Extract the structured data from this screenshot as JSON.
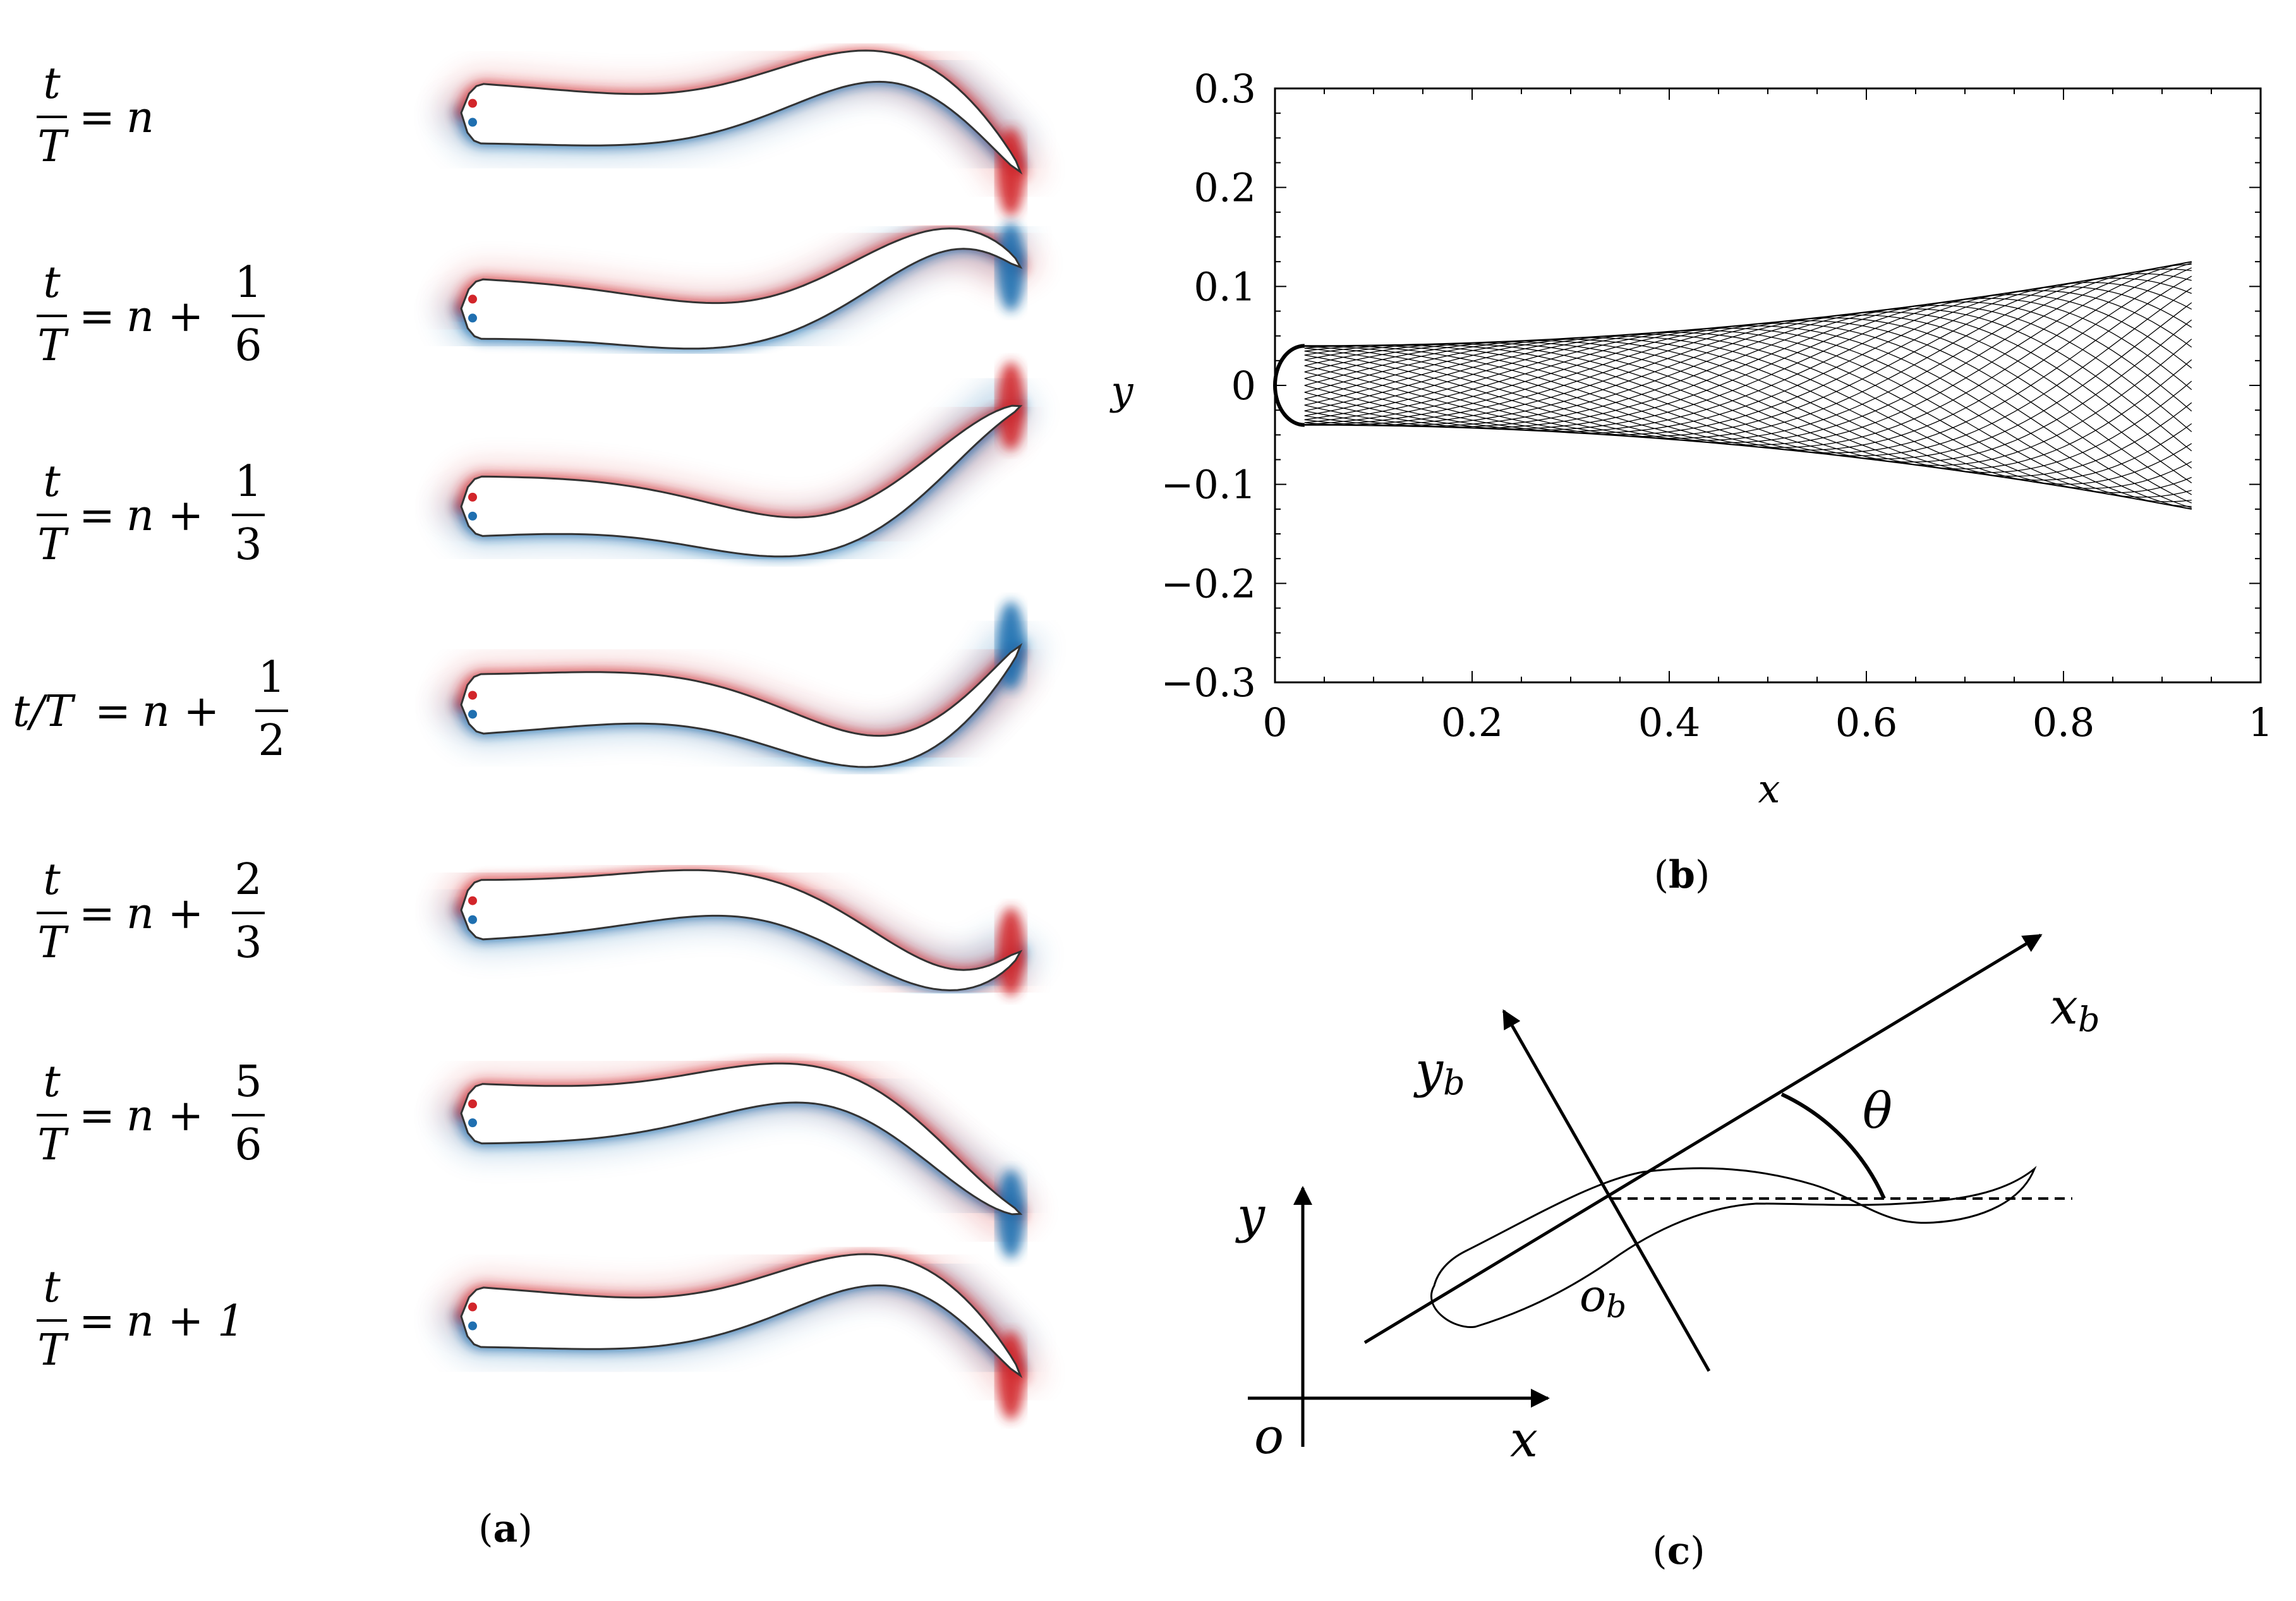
{
  "panel_a": {
    "caption_open": "(",
    "caption_letter": "a",
    "caption_close": ")",
    "snapshots": [
      {
        "lhs_num": "t",
        "lhs_den": "T",
        "eq": "=",
        "rhs": "n",
        "frac_num": "",
        "frac_den": ""
      },
      {
        "lhs_num": "t",
        "lhs_den": "T",
        "eq": "=",
        "rhs": "n +",
        "frac_num": "1",
        "frac_den": "6"
      },
      {
        "lhs_num": "t",
        "lhs_den": "T",
        "eq": "=",
        "rhs": "n +",
        "frac_num": "1",
        "frac_den": "3"
      },
      {
        "lhs_inline": "t/T",
        "eq": "=",
        "rhs": "n +",
        "frac_num": "1",
        "frac_den": "2"
      },
      {
        "lhs_num": "t",
        "lhs_den": "T",
        "eq": "=",
        "rhs": "n +",
        "frac_num": "2",
        "frac_den": "3"
      },
      {
        "lhs_num": "t",
        "lhs_den": "T",
        "eq": "=",
        "rhs": "n +",
        "frac_num": "5",
        "frac_den": "6"
      },
      {
        "lhs_num": "t",
        "lhs_den": "T",
        "eq": "=",
        "rhs": "n + 1",
        "frac_num": "",
        "frac_den": ""
      }
    ],
    "colors": {
      "negative_vorticity": "#1f6fb0",
      "positive_vorticity": "#d2252a",
      "outline": "#333333"
    }
  },
  "panel_b": {
    "caption_open": "(",
    "caption_letter": "b",
    "caption_close": ")",
    "xlabel": "x",
    "ylabel": "y",
    "xticks": [
      "0",
      "0.2",
      "0.4",
      "0.6",
      "0.8",
      "1"
    ],
    "yticks": [
      "0.3",
      "0.2",
      "0.1",
      "0",
      "−0.1",
      "−0.2",
      "−0.3"
    ]
  },
  "panel_c": {
    "caption_open": "(",
    "caption_letter": "c",
    "caption_close": ")",
    "label_xb": "x",
    "label_xb_sub": "b",
    "label_yb": "y",
    "label_yb_sub": "b",
    "label_ob": "o",
    "label_ob_sub": "b",
    "label_theta": "θ",
    "label_x": "x",
    "label_y": "y",
    "label_o": "o"
  },
  "chart_data": {
    "type": "line",
    "xlabel": "x",
    "ylabel": "y",
    "xlim": [
      0,
      1
    ],
    "ylim": [
      -0.3,
      0.3
    ],
    "xticks": [
      0,
      0.2,
      0.4,
      0.6,
      0.8,
      1
    ],
    "yticks": [
      -0.3,
      -0.2,
      -0.1,
      0,
      0.1,
      0.2,
      0.3
    ],
    "grid": false,
    "series": [
      {
        "values": [
          [
            0,
            0
          ],
          [
            0.03,
            0.04
          ],
          [
            0.3,
            0.0
          ],
          [
            0.6,
            -0.06
          ],
          [
            0.93,
            -0.12
          ]
        ]
      },
      {
        "values": [
          [
            0,
            0
          ],
          [
            0.03,
            -0.04
          ],
          [
            0.3,
            0.0
          ],
          [
            0.6,
            0.06
          ],
          [
            0.93,
            0.12
          ]
        ]
      }
    ],
    "envelope": {
      "head_x": 0.03,
      "head_halfwidth": 0.04,
      "tail_x": 0.93,
      "tail_amplitude": 0.125
    },
    "frames": 36
  }
}
